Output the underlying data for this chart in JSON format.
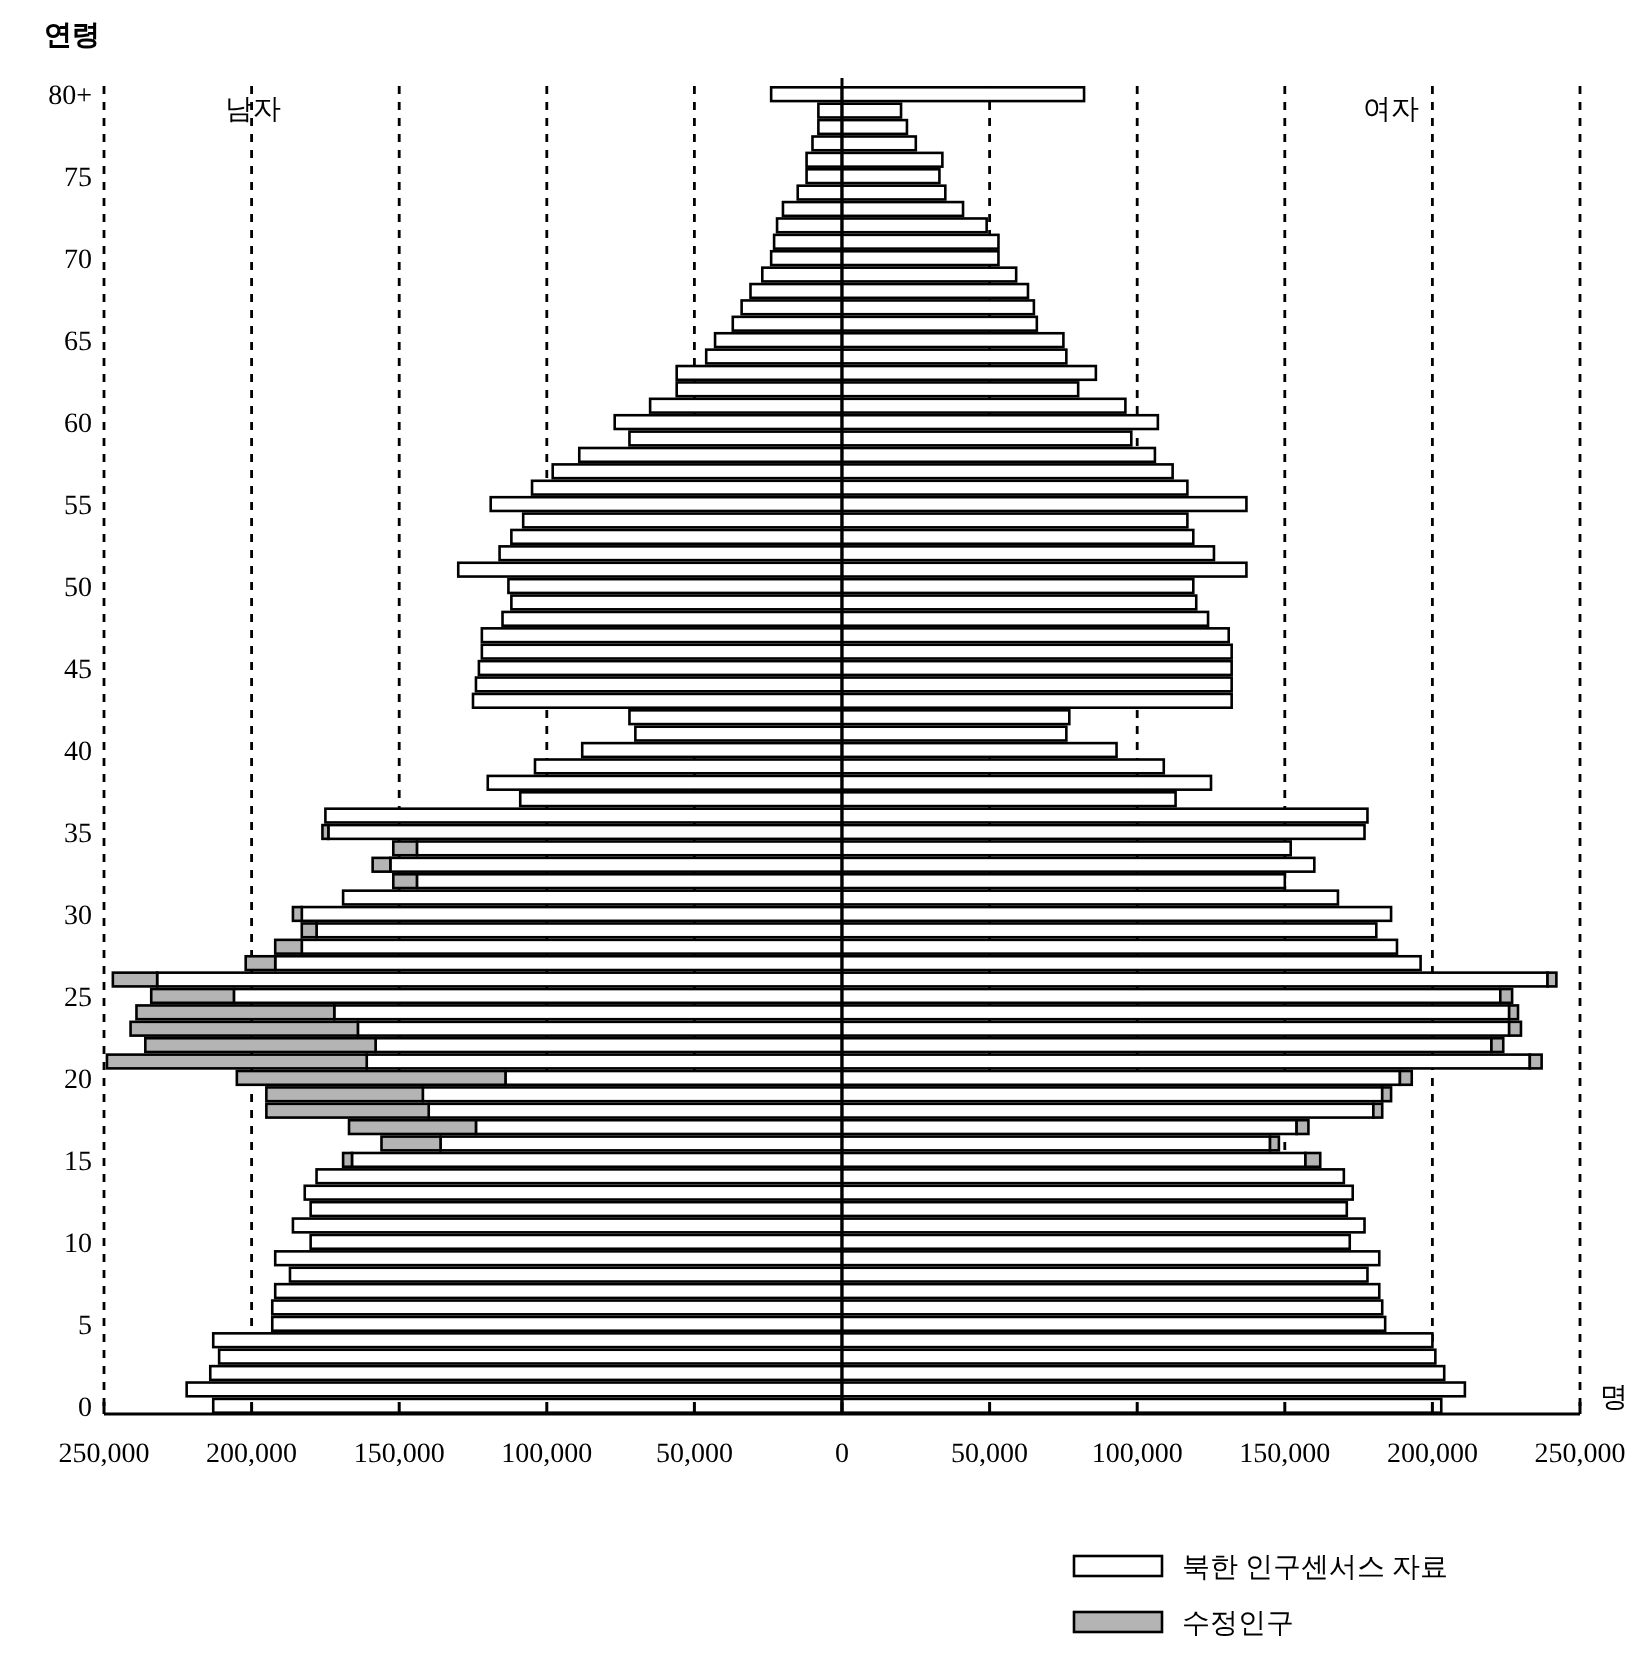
{
  "chart_data": {
    "type": "bar",
    "orientation": "horizontal",
    "stacked": true,
    "ylabel": "연령",
    "xlabel": "명",
    "annotations": [
      "남자",
      "여자"
    ],
    "categories": [
      "80+",
      null,
      null,
      null,
      null,
      "75",
      null,
      null,
      null,
      null,
      "70",
      null,
      null,
      null,
      null,
      "65",
      null,
      null,
      null,
      null,
      "60",
      null,
      null,
      null,
      null,
      "55",
      null,
      null,
      null,
      null,
      "50",
      null,
      null,
      null,
      null,
      "45",
      null,
      null,
      null,
      null,
      "40",
      null,
      null,
      null,
      null,
      "35",
      null,
      null,
      null,
      null,
      "30",
      null,
      null,
      null,
      null,
      "25",
      null,
      null,
      null,
      null,
      "20",
      null,
      null,
      null,
      null,
      "15",
      null,
      null,
      null,
      null,
      "10",
      null,
      null,
      null,
      null,
      "5",
      null,
      null,
      null,
      null,
      "0"
    ],
    "series": [
      {
        "name": "북한 인구센서스 자료",
        "color": "#ffffff",
        "values": [
          -24000,
          -8000,
          -8000,
          -10000,
          -12000,
          -12000,
          -15000,
          -20000,
          -22000,
          -23000,
          -24000,
          -27000,
          -31000,
          -34000,
          -37000,
          -43000,
          -46000,
          -56000,
          -56000,
          -65000,
          -77000,
          -72000,
          -89000,
          -98000,
          -105000,
          -119000,
          -108000,
          -112000,
          -116000,
          -130000,
          -113000,
          -112000,
          -115000,
          -122000,
          -122000,
          -123000,
          -124000,
          -125000,
          -72000,
          -70000,
          -88000,
          -104000,
          -120000,
          -109000,
          -175000,
          -174000,
          -144000,
          -153000,
          -144000,
          -169000,
          -183000,
          -178000,
          -183000,
          -192000,
          -232000,
          -206000,
          -172000,
          -164000,
          -158000,
          -161000,
          -114000,
          -142000,
          -140000,
          -124000,
          -136000,
          -166000,
          -178000,
          -182000,
          -180000,
          -186000,
          -180000,
          -192000,
          -187000,
          -192000,
          -193000,
          -193000,
          -213000,
          -211000,
          -214000,
          -222000,
          -213000
        ]
      },
      {
        "name": "수정인구",
        "color": "#b4b4b4",
        "values": [
          null,
          null,
          null,
          null,
          null,
          null,
          null,
          null,
          null,
          null,
          null,
          null,
          null,
          null,
          null,
          null,
          null,
          null,
          null,
          null,
          null,
          null,
          null,
          null,
          null,
          null,
          null,
          null,
          null,
          null,
          null,
          null,
          null,
          null,
          null,
          null,
          null,
          null,
          null,
          null,
          null,
          null,
          null,
          null,
          null,
          -2000,
          -8000,
          -6000,
          -8000,
          null,
          -3000,
          -5000,
          -9000,
          -10000,
          -15000,
          -28000,
          -67000,
          -77000,
          -78000,
          -88000,
          -91000,
          -53000,
          -55000,
          -43000,
          -20000,
          -3000,
          null,
          null,
          null,
          null,
          null,
          null,
          null,
          null,
          null,
          null,
          null,
          null,
          null,
          null,
          null
        ]
      },
      {
        "color": "#ffffff",
        "values": [
          82000,
          20000,
          22000,
          25000,
          34000,
          33000,
          35000,
          41000,
          49000,
          53000,
          53000,
          59000,
          63000,
          65000,
          66000,
          75000,
          76000,
          86000,
          80000,
          96000,
          107000,
          98000,
          106000,
          112000,
          117000,
          137000,
          117000,
          119000,
          126000,
          137000,
          119000,
          120000,
          124000,
          131000,
          132000,
          132000,
          132000,
          132000,
          77000,
          76000,
          93000,
          109000,
          125000,
          113000,
          178000,
          177000,
          152000,
          160000,
          150000,
          168000,
          186000,
          181000,
          188000,
          196000,
          239000,
          223000,
          226000,
          226000,
          220000,
          233000,
          189000,
          183000,
          180000,
          154000,
          145000,
          157000,
          170000,
          173000,
          171000,
          177000,
          172000,
          182000,
          178000,
          182000,
          183000,
          184000,
          200000,
          201000,
          204000,
          211000,
          203000
        ]
      },
      {
        "color": "#b4b4b4",
        "values": [
          null,
          null,
          null,
          null,
          null,
          null,
          null,
          null,
          null,
          null,
          null,
          null,
          null,
          null,
          null,
          null,
          null,
          null,
          null,
          null,
          null,
          null,
          null,
          null,
          null,
          null,
          null,
          null,
          null,
          null,
          null,
          null,
          null,
          null,
          null,
          null,
          null,
          null,
          null,
          null,
          null,
          null,
          null,
          null,
          null,
          null,
          null,
          null,
          null,
          null,
          null,
          null,
          null,
          null,
          3000,
          4000,
          3000,
          4000,
          4000,
          4000,
          4000,
          3000,
          3000,
          4000,
          3000,
          5000,
          null,
          null,
          null,
          null,
          null,
          null,
          null,
          null,
          null,
          null,
          null,
          null,
          null,
          null,
          null
        ]
      }
    ],
    "xlim": [
      -250000,
      250000
    ],
    "xticks": [
      {
        "value": -250000,
        "label": "250,000"
      },
      {
        "value": -200000,
        "label": "200,000"
      },
      {
        "value": -150000,
        "label": "150,000"
      },
      {
        "value": -100000,
        "label": "100,000"
      },
      {
        "value": -50000,
        "label": "50,000"
      },
      0,
      {
        "value": 50000,
        "label": "50,000"
      },
      {
        "value": 100000,
        "label": "100,000"
      },
      {
        "value": 150000,
        "label": "150,000"
      },
      {
        "value": 200000,
        "label": "200,000"
      },
      {
        "value": 250000,
        "label": "250,000"
      }
    ],
    "grid": "x",
    "legend": "bottom right"
  }
}
